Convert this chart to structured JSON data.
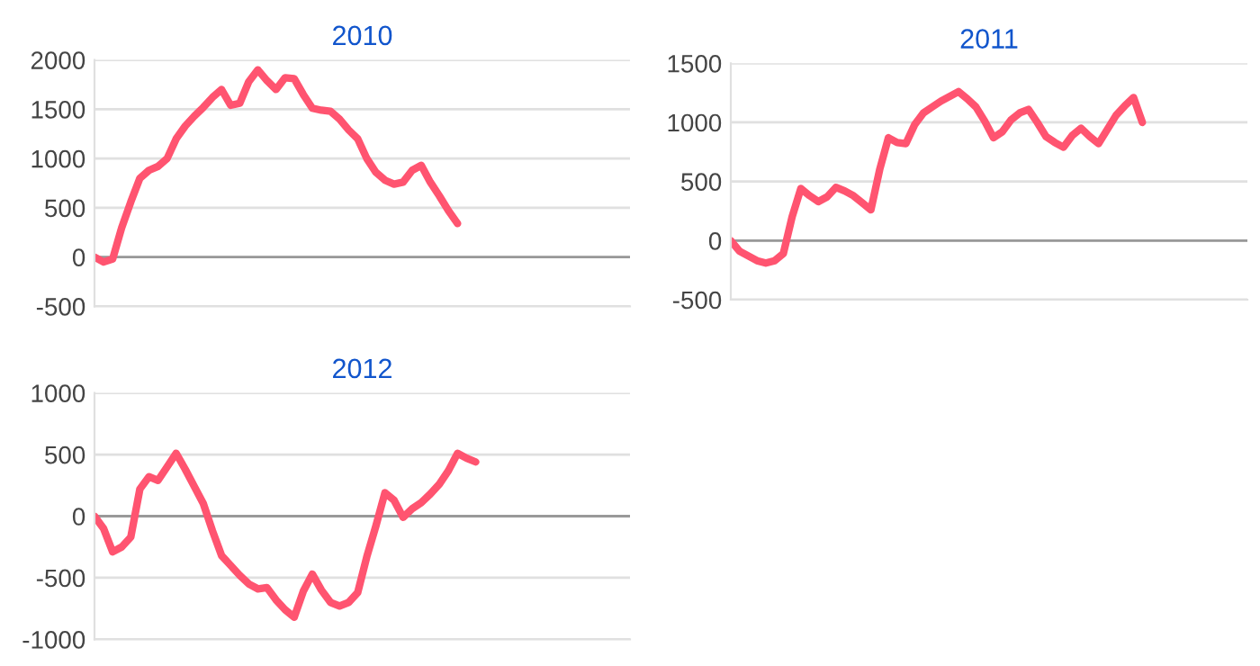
{
  "chart_data": [
    {
      "type": "line",
      "title": "2010",
      "categories": [
        null,
        null,
        null,
        null,
        null,
        null,
        null,
        null,
        null,
        null,
        null,
        null,
        null,
        null,
        null,
        null,
        null,
        null,
        null,
        null,
        null,
        null,
        null,
        null,
        null,
        null,
        null,
        null,
        null,
        null,
        null,
        null,
        null,
        null,
        null,
        null,
        null,
        null,
        null,
        null,
        null,
        null,
        null,
        null,
        null,
        null,
        null,
        null,
        null,
        null,
        null,
        null,
        null,
        null,
        null,
        null,
        null,
        null,
        null,
        null
      ],
      "series": [
        {
          "color": "#ff5470",
          "values": [
            0,
            -50,
            -20,
            300,
            560,
            800,
            880,
            920,
            1000,
            1200,
            1330,
            1430,
            1520,
            1620,
            1700,
            1540,
            1560,
            1780,
            1900,
            1790,
            1700,
            1820,
            1810,
            1650,
            1510,
            1490,
            1480,
            1400,
            1290,
            1200,
            1000,
            860,
            780,
            740,
            760,
            880,
            930,
            760,
            620,
            470,
            340,
            null,
            null,
            null,
            null,
            null,
            null,
            null,
            null,
            null,
            null,
            null,
            null,
            null,
            null,
            null,
            null,
            null,
            null,
            null
          ]
        }
      ],
      "ylim": [
        -500,
        2000
      ],
      "yticks": [
        -500,
        0,
        500,
        1000,
        1500,
        2000
      ],
      "grid": "y",
      "tick_labels": "y",
      "marker": "none",
      "line_style": "solid",
      "ref_lines": [
        {
          "axis": "y",
          "value": 0,
          "color": "#999999"
        }
      ]
    },
    {
      "type": "line",
      "title": "2012",
      "categories": [
        null,
        null,
        null,
        null,
        null,
        null,
        null,
        null,
        null,
        null,
        null,
        null,
        null,
        null,
        null,
        null,
        null,
        null,
        null,
        null,
        null,
        null,
        null,
        null,
        null,
        null,
        null,
        null,
        null,
        null,
        null,
        null,
        null,
        null,
        null,
        null,
        null,
        null,
        null,
        null,
        null,
        null,
        null,
        null,
        null,
        null,
        null,
        null,
        null,
        null,
        null,
        null,
        null,
        null,
        null,
        null,
        null,
        null,
        null,
        null
      ],
      "series": [
        {
          "color": "#ff5470",
          "values": [
            0,
            -100,
            -290,
            -250,
            -170,
            220,
            320,
            290,
            400,
            510,
            380,
            240,
            100,
            -120,
            -320,
            -400,
            -480,
            -550,
            -590,
            -580,
            -680,
            -760,
            -820,
            -610,
            -470,
            -600,
            -700,
            -730,
            -700,
            -620,
            -330,
            -80,
            190,
            130,
            -10,
            60,
            110,
            180,
            260,
            370,
            510,
            470,
            440,
            null,
            null,
            null,
            null,
            null,
            null,
            null,
            null,
            null,
            null,
            null,
            null,
            null,
            null,
            null,
            null,
            null
          ]
        }
      ],
      "ylim": [
        -1000,
        1000
      ],
      "yticks": [
        -1000,
        -500,
        0,
        500,
        1000
      ],
      "grid": "y",
      "tick_labels": "y",
      "marker": "none",
      "line_style": "solid",
      "ref_lines": [
        {
          "axis": "y",
          "value": 0,
          "color": "#999999"
        }
      ]
    },
    {
      "type": "line",
      "title": "2011",
      "categories": [
        null,
        null,
        null,
        null,
        null,
        null,
        null,
        null,
        null,
        null,
        null,
        null,
        null,
        null,
        null,
        null,
        null,
        null,
        null,
        null,
        null,
        null,
        null,
        null,
        null,
        null,
        null,
        null,
        null,
        null,
        null,
        null,
        null,
        null,
        null,
        null,
        null,
        null,
        null,
        null,
        null,
        null,
        null,
        null,
        null,
        null,
        null,
        null,
        null,
        null,
        null,
        null,
        null,
        null,
        null,
        null,
        null,
        null,
        null,
        null
      ],
      "series": [
        {
          "color": "#ff5470",
          "values": [
            0,
            -90,
            -130,
            -170,
            -190,
            -170,
            -110,
            200,
            440,
            380,
            330,
            370,
            450,
            420,
            380,
            320,
            260,
            600,
            870,
            830,
            820,
            980,
            1080,
            1130,
            1180,
            1220,
            1260,
            1200,
            1130,
            1010,
            870,
            920,
            1020,
            1080,
            1110,
            1000,
            880,
            830,
            790,
            890,
            950,
            880,
            820,
            940,
            1060,
            1140,
            1210,
            1000,
            null,
            null,
            null,
            null,
            null,
            null,
            null,
            null,
            null,
            null,
            null,
            null
          ]
        }
      ],
      "ylim": [
        -500,
        1500
      ],
      "yticks": [
        -500,
        0,
        500,
        1000,
        1500
      ],
      "grid": "y",
      "tick_labels": "y",
      "marker": "none",
      "line_style": "solid",
      "ref_lines": [
        {
          "axis": "y",
          "value": 0,
          "color": "#999999"
        }
      ]
    }
  ]
}
